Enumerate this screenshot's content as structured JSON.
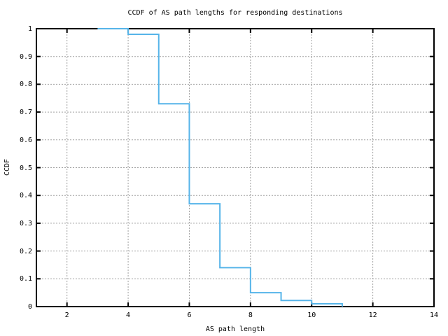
{
  "chart_data": {
    "type": "line",
    "subtype": "step-post",
    "title": "CCDF of AS path lengths for responding destinations",
    "xlabel": "AS path length",
    "ylabel": "CCDF",
    "x": [
      3,
      4,
      5,
      6,
      7,
      8,
      9,
      10,
      11
    ],
    "y": [
      1.0,
      0.98,
      0.73,
      0.37,
      0.14,
      0.05,
      0.022,
      0.01,
      0.0
    ],
    "xlim": [
      1,
      14
    ],
    "ylim": [
      0,
      1
    ],
    "xticks": [
      2,
      4,
      6,
      8,
      10,
      12,
      14
    ],
    "xtick_labels": [
      "2",
      "4",
      "6",
      "8",
      "10",
      "12",
      "14"
    ],
    "yticks": [
      0,
      0.1,
      0.2,
      0.3,
      0.4,
      0.5,
      0.6,
      0.7,
      0.8,
      0.9,
      1
    ],
    "ytick_labels": [
      "0",
      "0.1",
      "0.2",
      "0.3",
      "0.4",
      "0.5",
      "0.6",
      "0.7",
      "0.8",
      "0.9",
      "1"
    ],
    "grid": true,
    "legend": "none",
    "line_color": "#56b4e9",
    "grid_color": "#a0a0a0",
    "axis_color": "#000000",
    "background": "#ffffff"
  }
}
